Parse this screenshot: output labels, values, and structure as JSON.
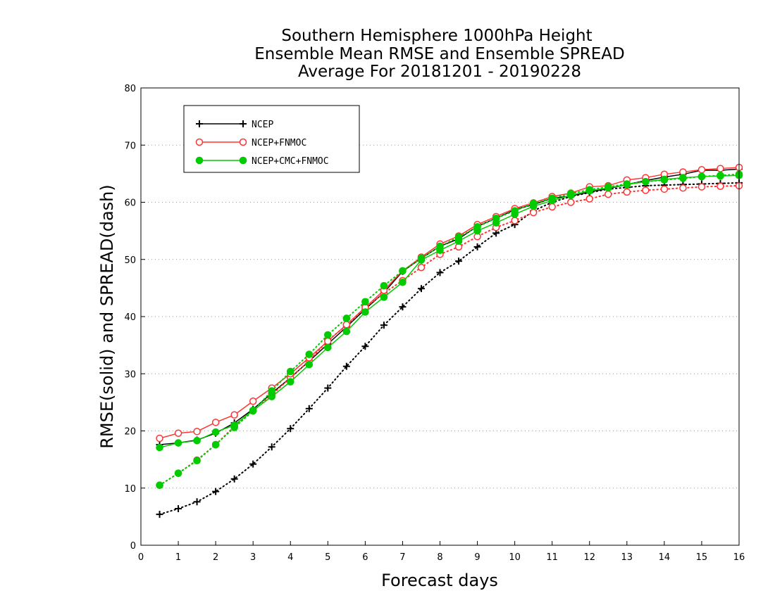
{
  "chart_data": {
    "type": "line",
    "title_lines": [
      "Southern Hemisphere 1000hPa Height",
      "Ensemble Mean RMSE and Ensemble SPREAD",
      "Average For 20181201 - 20190228"
    ],
    "xlabel": "Forecast days",
    "ylabel": "RMSE(solid) and SPREAD(dash)",
    "xlim": [
      0,
      16
    ],
    "ylim": [
      0,
      80
    ],
    "xticks": [
      0,
      1,
      2,
      3,
      4,
      5,
      6,
      7,
      8,
      9,
      10,
      11,
      12,
      13,
      14,
      15,
      16
    ],
    "yticks": [
      0,
      10,
      20,
      30,
      40,
      50,
      60,
      70,
      80
    ],
    "grid": "horizontal dotted",
    "legend_position": "top-left",
    "x": [
      0.5,
      1,
      1.5,
      2,
      2.5,
      3,
      3.5,
      4,
      4.5,
      5,
      5.5,
      6,
      6.5,
      7,
      7.5,
      8,
      8.5,
      9,
      9.5,
      10,
      10.5,
      11,
      11.5,
      12,
      12.5,
      13,
      13.5,
      14,
      14.5,
      15,
      15.5,
      16
    ],
    "series": [
      {
        "name": "NCEP",
        "color": "#000000",
        "marker": "plus",
        "rmse": [
          17.6,
          17.9,
          18.4,
          19.6,
          21.4,
          23.8,
          26.6,
          29.3,
          32.2,
          35.2,
          38.2,
          41.3,
          44.2,
          47.9,
          50.2,
          52.3,
          53.6,
          55.8,
          57.2,
          58.7,
          59.6,
          60.7,
          61.1,
          61.8,
          62.4,
          63.1,
          63.8,
          64.4,
          64.9,
          65.6,
          65.6,
          65.8
        ],
        "spread": [
          5.4,
          6.4,
          7.6,
          9.4,
          11.6,
          14.2,
          17.2,
          20.4,
          23.9,
          27.5,
          31.3,
          34.8,
          38.5,
          41.7,
          44.9,
          47.7,
          49.7,
          52.2,
          54.6,
          56.1,
          58.5,
          60.0,
          61.0,
          61.7,
          62.3,
          62.6,
          62.9,
          63.0,
          63.1,
          63.2,
          63.3,
          63.4
        ]
      },
      {
        "name": "NCEP+FNMOC",
        "color": "#ff3333",
        "marker": "open-circle",
        "rmse": [
          18.7,
          19.6,
          19.9,
          21.5,
          22.8,
          25.2,
          27.5,
          30.0,
          32.8,
          35.7,
          38.6,
          41.6,
          44.6,
          48.0,
          50.4,
          52.7,
          54.1,
          56.1,
          57.5,
          58.9,
          59.9,
          61.0,
          61.6,
          62.7,
          62.9,
          63.9,
          64.3,
          64.9,
          65.3,
          65.7,
          65.9,
          66.1
        ],
        "spread": [
          10.5,
          12.6,
          14.9,
          17.6,
          20.8,
          23.5,
          26.3,
          29.3,
          32.3,
          35.8,
          38.5,
          41.6,
          44.1,
          46.3,
          48.6,
          50.9,
          52.2,
          54.0,
          55.6,
          56.8,
          58.2,
          59.2,
          60.0,
          60.6,
          61.4,
          61.8,
          62.1,
          62.3,
          62.5,
          62.7,
          62.8,
          62.9
        ]
      },
      {
        "name": "NCEP+CMC+FNMOC",
        "color": "#00cc00",
        "marker": "filled-circle",
        "rmse": [
          17.1,
          17.9,
          18.3,
          19.8,
          21.0,
          23.6,
          26.0,
          28.6,
          31.6,
          34.6,
          37.4,
          40.8,
          43.4,
          46.0,
          49.9,
          51.6,
          53.2,
          55.0,
          56.4,
          57.9,
          59.3,
          60.3,
          61.2,
          62.0,
          62.5,
          63.1,
          63.6,
          64.0,
          64.3,
          64.5,
          64.6,
          64.7
        ],
        "spread": [
          10.5,
          12.6,
          14.8,
          17.6,
          20.6,
          23.5,
          27.0,
          30.4,
          33.4,
          36.8,
          39.7,
          42.6,
          45.4,
          48.0,
          50.2,
          52.3,
          53.9,
          55.7,
          57.2,
          58.5,
          59.8,
          60.7,
          61.5,
          62.2,
          62.7,
          63.2,
          63.6,
          63.9,
          64.2,
          64.5,
          64.7,
          64.9
        ]
      }
    ]
  }
}
